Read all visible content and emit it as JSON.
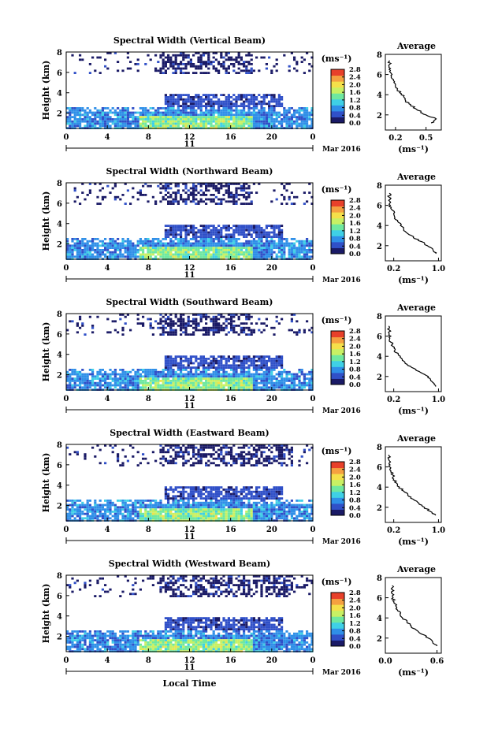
{
  "figure": {
    "xlabel": "Local Time",
    "date_label": "Mar 2016",
    "day_label": "11",
    "ylabel": "Height (km)",
    "colorbar_unit": "(ms⁻¹)",
    "avg_title": "Average",
    "avg_xlabel": "(ms⁻¹)",
    "colormap": [
      "#1a1a66",
      "#3050c8",
      "#2f8fe8",
      "#3fd0e6",
      "#6fe8a0",
      "#c8f064",
      "#f4e04a",
      "#f5a040",
      "#e8402a"
    ]
  },
  "chart_data": [
    {
      "type": "heatmap",
      "title": "Spectral Width (Vertical Beam)",
      "x_ticks": [
        "0",
        "4",
        "8",
        "12",
        "16",
        "20",
        "0"
      ],
      "xlim": [
        0,
        24
      ],
      "y_ticks": [
        "2",
        "4",
        "6",
        "8"
      ],
      "ylim": [
        0.5,
        8
      ],
      "colorbar_ticks": [
        "0.0",
        "0.4",
        "0.8",
        "1.2",
        "1.6",
        "2.0",
        "2.4",
        "2.8"
      ],
      "colorbar_range": [
        0,
        2.8
      ],
      "average": {
        "title": "Average",
        "x_ticks": [
          "0.2",
          "0.5"
        ],
        "xlim": [
          0.1,
          0.65
        ],
        "y_ticks": [
          "2",
          "4",
          "6",
          "8"
        ],
        "ylim": [
          0.5,
          8
        ],
        "profile": [
          [
            0.55,
            1.2
          ],
          [
            0.6,
            1.6
          ],
          [
            0.5,
            2.0
          ],
          [
            0.45,
            2.3
          ],
          [
            0.4,
            2.6
          ],
          [
            0.35,
            3.0
          ],
          [
            0.3,
            3.4
          ],
          [
            0.28,
            3.8
          ],
          [
            0.24,
            4.2
          ],
          [
            0.22,
            4.6
          ],
          [
            0.2,
            5.0
          ],
          [
            0.18,
            5.4
          ],
          [
            0.16,
            5.8
          ],
          [
            0.15,
            6.2
          ],
          [
            0.15,
            6.6
          ],
          [
            0.14,
            7.0
          ],
          [
            0.14,
            7.4
          ]
        ]
      }
    },
    {
      "type": "heatmap",
      "title": "Spectral Width (Northward Beam)",
      "x_ticks": [
        "0",
        "4",
        "8",
        "12",
        "16",
        "20",
        "0"
      ],
      "xlim": [
        0,
        24
      ],
      "y_ticks": [
        "2",
        "4",
        "6",
        "8"
      ],
      "ylim": [
        0.5,
        8
      ],
      "colorbar_ticks": [
        "0.0",
        "0.4",
        "0.8",
        "1.2",
        "1.6",
        "2.0",
        "2.4",
        "2.8"
      ],
      "colorbar_range": [
        0,
        2.8
      ],
      "average": {
        "title": "Average",
        "x_ticks": [
          "0.2",
          "1.0"
        ],
        "xlim": [
          0.05,
          1.05
        ],
        "y_ticks": [
          "2",
          "4",
          "6",
          "8"
        ],
        "ylim": [
          0.5,
          8
        ],
        "profile": [
          [
            0.95,
            1.2
          ],
          [
            0.9,
            1.6
          ],
          [
            0.8,
            2.0
          ],
          [
            0.7,
            2.4
          ],
          [
            0.55,
            2.8
          ],
          [
            0.45,
            3.2
          ],
          [
            0.38,
            3.6
          ],
          [
            0.32,
            4.0
          ],
          [
            0.27,
            4.4
          ],
          [
            0.22,
            4.8
          ],
          [
            0.2,
            5.2
          ],
          [
            0.16,
            5.6
          ],
          [
            0.14,
            6.0
          ],
          [
            0.13,
            6.4
          ],
          [
            0.12,
            6.8
          ],
          [
            0.12,
            7.2
          ]
        ]
      }
    },
    {
      "type": "heatmap",
      "title": "Spectral Width (Southward Beam)",
      "x_ticks": [
        "0",
        "4",
        "8",
        "12",
        "16",
        "20",
        "0"
      ],
      "xlim": [
        0,
        24
      ],
      "y_ticks": [
        "2",
        "4",
        "6",
        "8"
      ],
      "ylim": [
        0.5,
        8
      ],
      "colorbar_ticks": [
        "0.0",
        "0.4",
        "0.8",
        "1.2",
        "1.6",
        "2.0",
        "2.4",
        "2.8"
      ],
      "colorbar_range": [
        0,
        2.8
      ],
      "average": {
        "title": "Average",
        "x_ticks": [
          "0.2",
          "1.0"
        ],
        "xlim": [
          0.05,
          1.05
        ],
        "y_ticks": [
          "2",
          "4",
          "6",
          "8"
        ],
        "ylim": [
          0.5,
          8
        ],
        "profile": [
          [
            0.95,
            1.0
          ],
          [
            0.9,
            1.4
          ],
          [
            0.85,
            1.8
          ],
          [
            0.75,
            2.2
          ],
          [
            0.6,
            2.6
          ],
          [
            0.5,
            3.0
          ],
          [
            0.4,
            3.4
          ],
          [
            0.34,
            3.8
          ],
          [
            0.28,
            4.2
          ],
          [
            0.22,
            4.6
          ],
          [
            0.18,
            5.0
          ],
          [
            0.15,
            5.4
          ],
          [
            0.13,
            5.8
          ],
          [
            0.12,
            6.2
          ],
          [
            0.12,
            6.6
          ],
          [
            0.11,
            7.0
          ]
        ]
      }
    },
    {
      "type": "heatmap",
      "title": "Spectral Width (Eastward Beam)",
      "x_ticks": [
        "0",
        "4",
        "8",
        "12",
        "16",
        "20",
        "0"
      ],
      "xlim": [
        0,
        24
      ],
      "y_ticks": [
        "2",
        "4",
        "6",
        "8"
      ],
      "ylim": [
        0.5,
        8
      ],
      "colorbar_ticks": [
        "0.0",
        "0.4",
        "0.8",
        "1.2",
        "1.6",
        "2.0",
        "2.4",
        "2.8"
      ],
      "colorbar_range": [
        0,
        2.8
      ],
      "average": {
        "title": "Average",
        "x_ticks": [
          "0.2",
          "1.0"
        ],
        "xlim": [
          0.05,
          1.05
        ],
        "y_ticks": [
          "2",
          "4",
          "6",
          "8"
        ],
        "ylim": [
          0.5,
          8
        ],
        "profile": [
          [
            0.95,
            1.2
          ],
          [
            0.85,
            1.6
          ],
          [
            0.75,
            2.0
          ],
          [
            0.65,
            2.4
          ],
          [
            0.55,
            2.8
          ],
          [
            0.45,
            3.2
          ],
          [
            0.38,
            3.6
          ],
          [
            0.3,
            4.0
          ],
          [
            0.25,
            4.4
          ],
          [
            0.2,
            4.8
          ],
          [
            0.18,
            5.2
          ],
          [
            0.15,
            5.6
          ],
          [
            0.13,
            6.0
          ],
          [
            0.12,
            6.4
          ],
          [
            0.11,
            6.8
          ],
          [
            0.11,
            7.2
          ]
        ]
      }
    },
    {
      "type": "heatmap",
      "title": "Spectral Width (Westward Beam)",
      "x_ticks": [
        "0",
        "4",
        "8",
        "12",
        "16",
        "20",
        "0"
      ],
      "xlim": [
        0,
        24
      ],
      "y_ticks": [
        "2",
        "4",
        "6",
        "8"
      ],
      "ylim": [
        0.5,
        8
      ],
      "colorbar_ticks": [
        "0.0",
        "0.4",
        "0.8",
        "1.2",
        "1.6",
        "2.0",
        "2.4",
        "2.8"
      ],
      "colorbar_range": [
        0,
        2.8
      ],
      "average": {
        "title": "Average",
        "x_ticks": [
          "0.0",
          "0.6"
        ],
        "xlim": [
          0.0,
          0.65
        ],
        "y_ticks": [
          "2",
          "4",
          "6",
          "8"
        ],
        "ylim": [
          0.5,
          8
        ],
        "profile": [
          [
            0.6,
            1.2
          ],
          [
            0.55,
            1.6
          ],
          [
            0.5,
            2.0
          ],
          [
            0.42,
            2.4
          ],
          [
            0.36,
            2.8
          ],
          [
            0.3,
            3.2
          ],
          [
            0.25,
            3.6
          ],
          [
            0.2,
            4.0
          ],
          [
            0.17,
            4.4
          ],
          [
            0.14,
            4.8
          ],
          [
            0.12,
            5.2
          ],
          [
            0.1,
            5.6
          ],
          [
            0.09,
            6.0
          ],
          [
            0.08,
            6.4
          ],
          [
            0.08,
            6.8
          ],
          [
            0.08,
            7.2
          ]
        ]
      }
    }
  ]
}
